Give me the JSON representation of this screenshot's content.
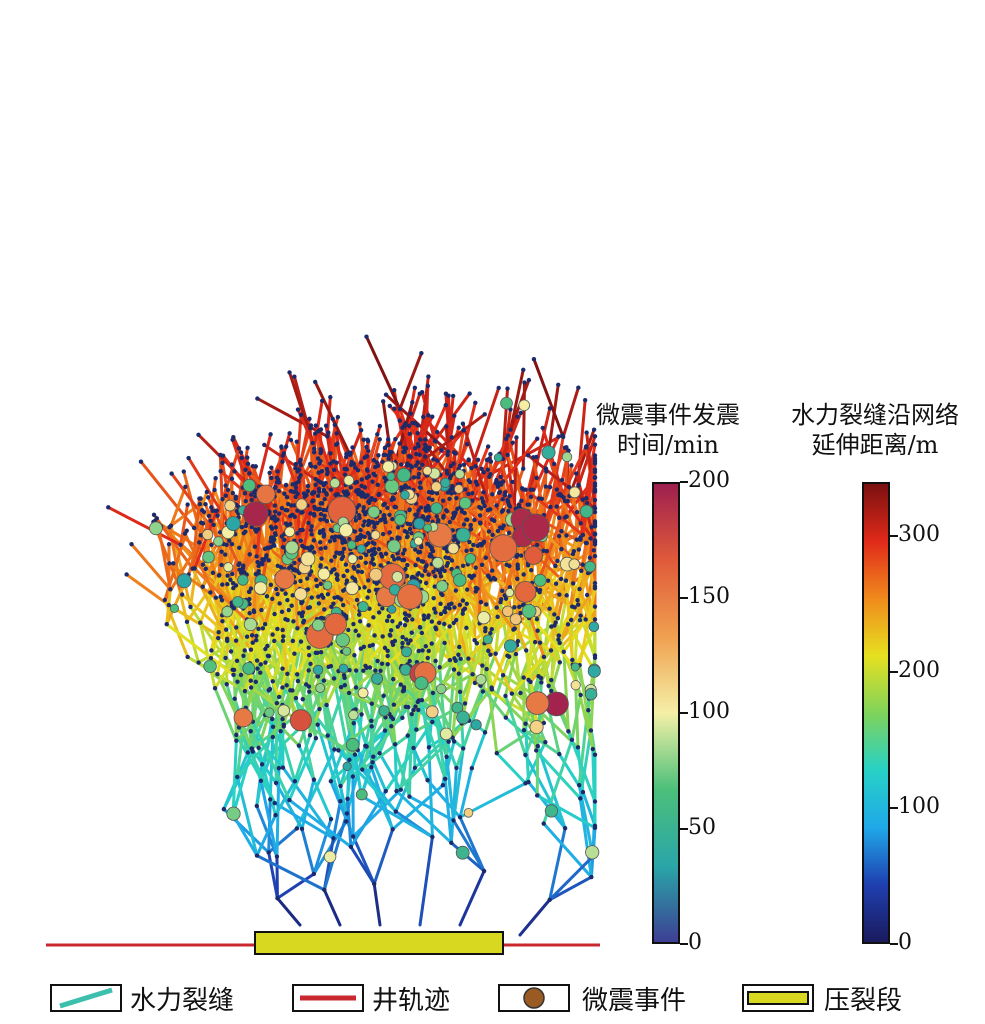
{
  "colorbar_time": {
    "title_line1": "微震事件发震",
    "title_line2": "时间/min",
    "ticks": [
      "0",
      "50",
      "100",
      "150",
      "200"
    ],
    "range": [
      0,
      200
    ],
    "colors": [
      "#3d3f94",
      "#2aa6a8",
      "#4cbf7a",
      "#f4f0a6",
      "#f0a050",
      "#e05a3a",
      "#9e1f4f"
    ]
  },
  "colorbar_distance": {
    "title_line1": "水力裂缝沿网络",
    "title_line2": "延伸距离/m",
    "ticks": [
      "0",
      "100",
      "200",
      "300"
    ],
    "range": [
      0,
      340
    ],
    "colors": [
      "#1a1a5c",
      "#1f3fb0",
      "#1fa8e8",
      "#27d1c6",
      "#7fd35a",
      "#e6e020",
      "#f08a1c",
      "#e02a1a",
      "#7a1010"
    ]
  },
  "legend": {
    "fracture": "水力裂缝",
    "wellbore": "井轨迹",
    "event": "微震事件",
    "stage": "压裂段"
  },
  "colors": {
    "wellbore": "#c8282e",
    "stage_fill": "#d8d820",
    "event_legend": "#9a5a24",
    "fracture_legend": "#3dbfae"
  }
}
